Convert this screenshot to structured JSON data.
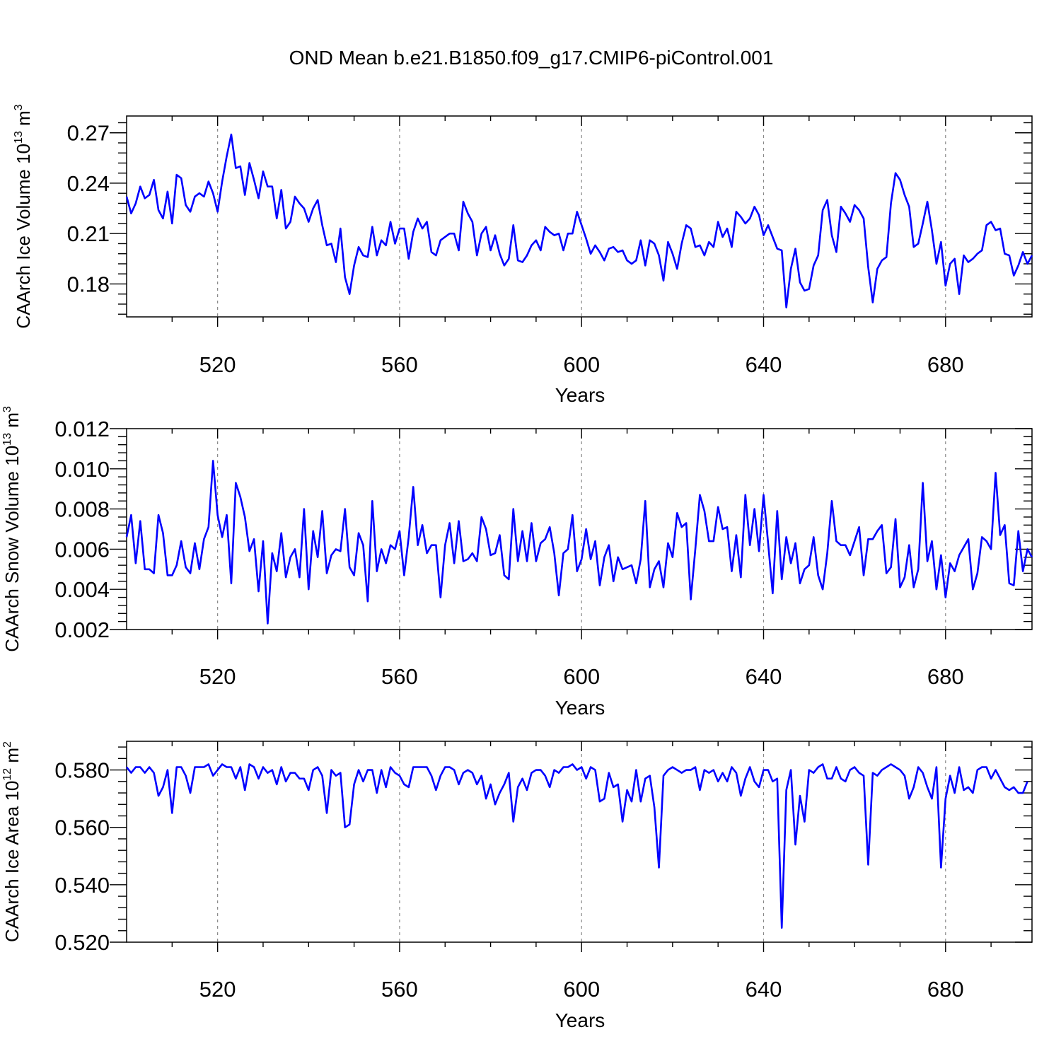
{
  "title": "OND Mean b.e21.B1850.f09_g17.CMIP6-piControl.001",
  "line_color": "#0000ff",
  "chart_data": [
    {
      "type": "line",
      "ylabel": "CAArch Ice Volume 10",
      "ylabel_exp": "13",
      "ylabel_unit": " m",
      "ylabel_unit_exp": "3",
      "xlabel": "Years",
      "xlim": [
        500,
        699
      ],
      "ylim": [
        0.1604,
        0.28
      ],
      "xticks": [
        520,
        560,
        600,
        640,
        680
      ],
      "xtick_labels": [
        "520",
        "560",
        "600",
        "640",
        "680"
      ],
      "yticks": [
        0.18,
        0.21,
        0.24,
        0.27
      ],
      "ytick_labels": [
        "0.18",
        "0.21",
        "0.24",
        "0.27"
      ],
      "x_start": 500,
      "series": [
        {
          "name": "Ice Volume",
          "values": [
            0.232,
            0.222,
            0.228,
            0.238,
            0.231,
            0.233,
            0.242,
            0.224,
            0.219,
            0.235,
            0.216,
            0.245,
            0.243,
            0.227,
            0.223,
            0.232,
            0.234,
            0.232,
            0.241,
            0.234,
            0.223,
            0.241,
            0.256,
            0.269,
            0.249,
            0.25,
            0.233,
            0.252,
            0.242,
            0.231,
            0.247,
            0.238,
            0.238,
            0.219,
            0.236,
            0.213,
            0.217,
            0.232,
            0.228,
            0.225,
            0.217,
            0.225,
            0.23,
            0.215,
            0.203,
            0.204,
            0.193,
            0.213,
            0.184,
            0.174,
            0.191,
            0.202,
            0.197,
            0.196,
            0.214,
            0.197,
            0.206,
            0.203,
            0.217,
            0.204,
            0.213,
            0.213,
            0.195,
            0.211,
            0.219,
            0.213,
            0.217,
            0.199,
            0.197,
            0.206,
            0.208,
            0.21,
            0.21,
            0.2,
            0.229,
            0.222,
            0.217,
            0.197,
            0.21,
            0.214,
            0.2,
            0.209,
            0.198,
            0.191,
            0.195,
            0.215,
            0.194,
            0.193,
            0.197,
            0.203,
            0.206,
            0.2,
            0.214,
            0.211,
            0.209,
            0.21,
            0.2,
            0.21,
            0.21,
            0.223,
            0.215,
            0.207,
            0.198,
            0.203,
            0.199,
            0.194,
            0.201,
            0.202,
            0.199,
            0.2,
            0.194,
            0.192,
            0.194,
            0.206,
            0.191,
            0.206,
            0.204,
            0.197,
            0.182,
            0.205,
            0.198,
            0.189,
            0.204,
            0.215,
            0.213,
            0.202,
            0.203,
            0.197,
            0.205,
            0.202,
            0.217,
            0.208,
            0.213,
            0.202,
            0.223,
            0.22,
            0.216,
            0.219,
            0.226,
            0.221,
            0.209,
            0.215,
            0.208,
            0.201,
            0.2,
            0.166,
            0.189,
            0.201,
            0.181,
            0.176,
            0.177,
            0.191,
            0.197,
            0.224,
            0.23,
            0.209,
            0.199,
            0.226,
            0.222,
            0.217,
            0.227,
            0.224,
            0.219,
            0.19,
            0.169,
            0.189,
            0.194,
            0.196,
            0.228,
            0.246,
            0.242,
            0.233,
            0.226,
            0.202,
            0.204,
            0.216,
            0.229,
            0.212,
            0.192,
            0.205,
            0.179,
            0.192,
            0.195,
            0.174,
            0.197,
            0.193,
            0.195,
            0.198,
            0.2,
            0.215,
            0.217,
            0.212,
            0.213,
            0.198,
            0.197,
            0.185,
            0.191,
            0.199,
            0.192,
            0.197
          ]
        }
      ]
    },
    {
      "type": "line",
      "ylabel": "CAArch Snow Volume 10",
      "ylabel_exp": "13",
      "ylabel_unit": " m",
      "ylabel_unit_exp": "3",
      "xlabel": "Years",
      "xlim": [
        500,
        699
      ],
      "ylim": [
        0.002,
        0.012
      ],
      "xticks": [
        520,
        560,
        600,
        640,
        680
      ],
      "xtick_labels": [
        "520",
        "560",
        "600",
        "640",
        "680"
      ],
      "yticks": [
        0.002,
        0.004,
        0.006,
        0.008,
        0.01,
        0.012
      ],
      "ytick_labels": [
        "0.002",
        "0.004",
        "0.006",
        "0.008",
        "0.010",
        "0.012"
      ],
      "x_start": 500,
      "series": [
        {
          "name": "Snow Volume",
          "values": [
            0.0066,
            0.0077,
            0.0053,
            0.0074,
            0.005,
            0.005,
            0.0048,
            0.0077,
            0.0068,
            0.0047,
            0.0047,
            0.0052,
            0.0064,
            0.0051,
            0.0048,
            0.0063,
            0.005,
            0.0065,
            0.0071,
            0.0104,
            0.0077,
            0.0066,
            0.0077,
            0.0043,
            0.0093,
            0.0086,
            0.0076,
            0.0059,
            0.0065,
            0.0039,
            0.0064,
            0.0023,
            0.0058,
            0.0049,
            0.0068,
            0.0046,
            0.0056,
            0.006,
            0.0046,
            0.008,
            0.004,
            0.0069,
            0.0056,
            0.0079,
            0.0048,
            0.0057,
            0.006,
            0.0059,
            0.008,
            0.0051,
            0.0047,
            0.0068,
            0.0062,
            0.0034,
            0.0084,
            0.0049,
            0.006,
            0.0053,
            0.0062,
            0.006,
            0.0069,
            0.0047,
            0.0066,
            0.0091,
            0.0062,
            0.0072,
            0.0058,
            0.0062,
            0.0062,
            0.0036,
            0.0062,
            0.0073,
            0.0053,
            0.0074,
            0.0054,
            0.0055,
            0.0058,
            0.0054,
            0.0076,
            0.007,
            0.0057,
            0.0058,
            0.0067,
            0.0047,
            0.0045,
            0.008,
            0.0054,
            0.0069,
            0.0054,
            0.0073,
            0.0054,
            0.0063,
            0.0065,
            0.0071,
            0.0058,
            0.0037,
            0.0058,
            0.006,
            0.0077,
            0.0049,
            0.0055,
            0.007,
            0.0055,
            0.0064,
            0.0042,
            0.0056,
            0.0062,
            0.0044,
            0.0056,
            0.005,
            0.0051,
            0.0052,
            0.0043,
            0.0055,
            0.0084,
            0.0041,
            0.005,
            0.0054,
            0.0041,
            0.0063,
            0.0056,
            0.0078,
            0.0071,
            0.0073,
            0.0035,
            0.006,
            0.0087,
            0.0079,
            0.0064,
            0.0064,
            0.0081,
            0.007,
            0.0071,
            0.0049,
            0.0067,
            0.0046,
            0.0087,
            0.0062,
            0.008,
            0.0059,
            0.0087,
            0.0063,
            0.0038,
            0.0079,
            0.0045,
            0.0066,
            0.0053,
            0.0063,
            0.0043,
            0.005,
            0.0052,
            0.0066,
            0.0047,
            0.004,
            0.0058,
            0.0084,
            0.0064,
            0.0062,
            0.0062,
            0.0057,
            0.0064,
            0.0071,
            0.0047,
            0.0065,
            0.0065,
            0.0069,
            0.0072,
            0.0048,
            0.0051,
            0.0075,
            0.0041,
            0.0046,
            0.0062,
            0.0041,
            0.005,
            0.0093,
            0.0054,
            0.0064,
            0.004,
            0.0057,
            0.0036,
            0.0053,
            0.0049,
            0.0057,
            0.0061,
            0.0065,
            0.004,
            0.0048,
            0.0066,
            0.0064,
            0.006,
            0.0098,
            0.0067,
            0.0072,
            0.0043,
            0.0042,
            0.0069,
            0.0049,
            0.006,
            0.0056
          ]
        }
      ]
    },
    {
      "type": "line",
      "ylabel": "CAArch Ice Area 10",
      "ylabel_exp": "12",
      "ylabel_unit": " m",
      "ylabel_unit_exp": "2",
      "xlabel": "Years",
      "xlim": [
        500,
        699
      ],
      "ylim": [
        0.52,
        0.59
      ],
      "xticks": [
        520,
        560,
        600,
        640,
        680
      ],
      "xtick_labels": [
        "520",
        "560",
        "600",
        "640",
        "680"
      ],
      "yticks": [
        0.52,
        0.54,
        0.56,
        0.58
      ],
      "ytick_labels": [
        "0.520",
        "0.540",
        "0.560",
        "0.580"
      ],
      "x_start": 500,
      "series": [
        {
          "name": "Ice Area",
          "values": [
            0.581,
            0.579,
            0.581,
            0.581,
            0.579,
            0.581,
            0.579,
            0.571,
            0.574,
            0.58,
            0.565,
            0.581,
            0.581,
            0.578,
            0.572,
            0.581,
            0.581,
            0.581,
            0.582,
            0.578,
            0.58,
            0.582,
            0.581,
            0.581,
            0.577,
            0.581,
            0.573,
            0.582,
            0.581,
            0.577,
            0.581,
            0.579,
            0.58,
            0.575,
            0.581,
            0.576,
            0.579,
            0.579,
            0.577,
            0.577,
            0.573,
            0.58,
            0.581,
            0.578,
            0.565,
            0.58,
            0.578,
            0.579,
            0.56,
            0.561,
            0.575,
            0.58,
            0.576,
            0.58,
            0.58,
            0.572,
            0.58,
            0.574,
            0.581,
            0.579,
            0.578,
            0.575,
            0.574,
            0.581,
            0.581,
            0.581,
            0.581,
            0.578,
            0.573,
            0.578,
            0.581,
            0.581,
            0.58,
            0.575,
            0.579,
            0.58,
            0.579,
            0.575,
            0.578,
            0.57,
            0.575,
            0.568,
            0.572,
            0.575,
            0.579,
            0.562,
            0.574,
            0.577,
            0.573,
            0.579,
            0.58,
            0.58,
            0.578,
            0.574,
            0.58,
            0.579,
            0.581,
            0.581,
            0.582,
            0.58,
            0.581,
            0.577,
            0.581,
            0.58,
            0.569,
            0.57,
            0.579,
            0.574,
            0.575,
            0.562,
            0.573,
            0.569,
            0.58,
            0.569,
            0.577,
            0.578,
            0.567,
            0.546,
            0.578,
            0.58,
            0.581,
            0.58,
            0.579,
            0.58,
            0.58,
            0.581,
            0.573,
            0.58,
            0.579,
            0.58,
            0.576,
            0.579,
            0.576,
            0.581,
            0.579,
            0.571,
            0.577,
            0.581,
            0.576,
            0.574,
            0.58,
            0.58,
            0.576,
            0.577,
            0.525,
            0.573,
            0.58,
            0.554,
            0.571,
            0.562,
            0.58,
            0.579,
            0.581,
            0.582,
            0.577,
            0.577,
            0.581,
            0.577,
            0.576,
            0.58,
            0.581,
            0.579,
            0.578,
            0.547,
            0.579,
            0.578,
            0.58,
            0.581,
            0.582,
            0.581,
            0.58,
            0.578,
            0.57,
            0.574,
            0.581,
            0.579,
            0.574,
            0.57,
            0.581,
            0.546,
            0.57,
            0.578,
            0.572,
            0.581,
            0.573,
            0.574,
            0.572,
            0.58,
            0.581,
            0.581,
            0.577,
            0.58,
            0.577,
            0.574,
            0.573,
            0.574,
            0.572,
            0.572,
            0.576
          ]
        }
      ]
    }
  ]
}
